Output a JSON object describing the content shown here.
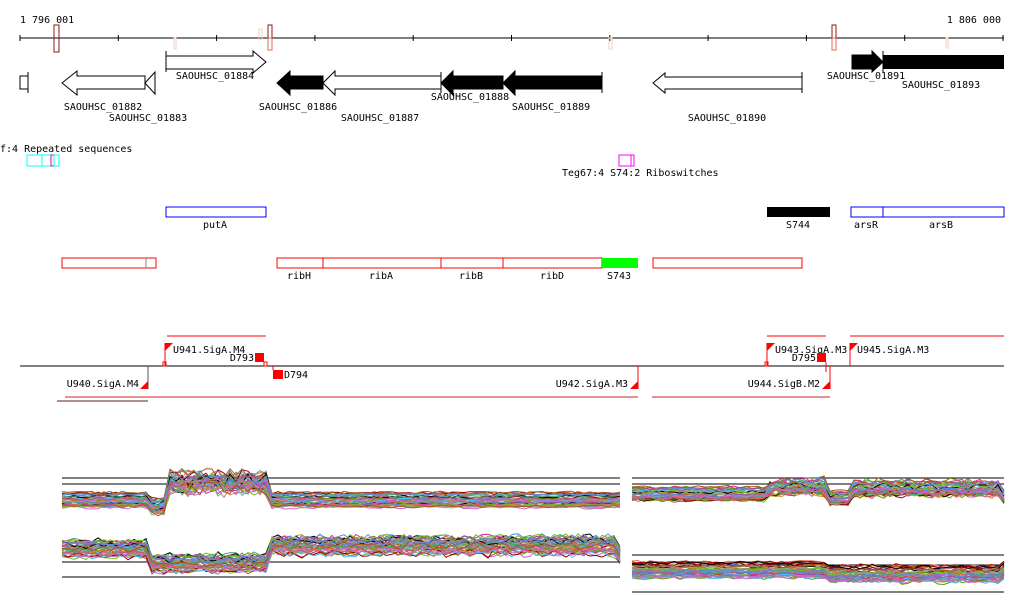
{
  "coordinates": {
    "start": "1 796 001",
    "end": "1 806 000"
  },
  "genes": [
    {
      "id": "SAOUHSC_01882",
      "strand": "-",
      "style": "outline"
    },
    {
      "id": "SAOUHSC_01883",
      "strand": "-",
      "style": "outline"
    },
    {
      "id": "SAOUHSC_01884",
      "strand": "+",
      "style": "outline"
    },
    {
      "id": "SAOUHSC_01886",
      "strand": "-",
      "style": "filled"
    },
    {
      "id": "SAOUHSC_01887",
      "strand": "-",
      "style": "outline"
    },
    {
      "id": "SAOUHSC_01888",
      "strand": "-",
      "style": "filled"
    },
    {
      "id": "SAOUHSC_01889",
      "strand": "-",
      "style": "filled"
    },
    {
      "id": "SAOUHSC_01890",
      "strand": "-",
      "style": "outline"
    },
    {
      "id": "SAOUHSC_01891",
      "strand": "+",
      "style": "filled"
    },
    {
      "id": "SAOUHSC_01893",
      "strand": "+",
      "style": "filled"
    }
  ],
  "features": {
    "repeats_label": "f:4 Repeated sequences",
    "riboswitch_label": "Teg67:4 S74:2 Riboswitches"
  },
  "plus_names": {
    "putA": "putA",
    "S744": "S744",
    "arsR": "arsR",
    "arsB": "arsB"
  },
  "minus_names": {
    "ribH": "ribH",
    "ribA": "ribA",
    "ribB": "ribB",
    "ribD": "ribD",
    "S743": "S743"
  },
  "promoters": {
    "U940": "U940.SigA.M4",
    "U941": "U941.SigA.M4",
    "U942": "U942.SigA.M3",
    "U943": "U943.SigA.M3",
    "U944": "U944.SigB.M2",
    "U945": "U945.SigA.M3"
  },
  "terminators": {
    "D793": "D793",
    "D794": "D794",
    "D795": "D795"
  },
  "colors": {
    "accent_red": "#ff0000",
    "plus_blue": "#0000ff",
    "repeat_cyan": "#00ffff",
    "riboswitch_magenta": "#ff00ff",
    "srna_green": "#00ff00"
  }
}
